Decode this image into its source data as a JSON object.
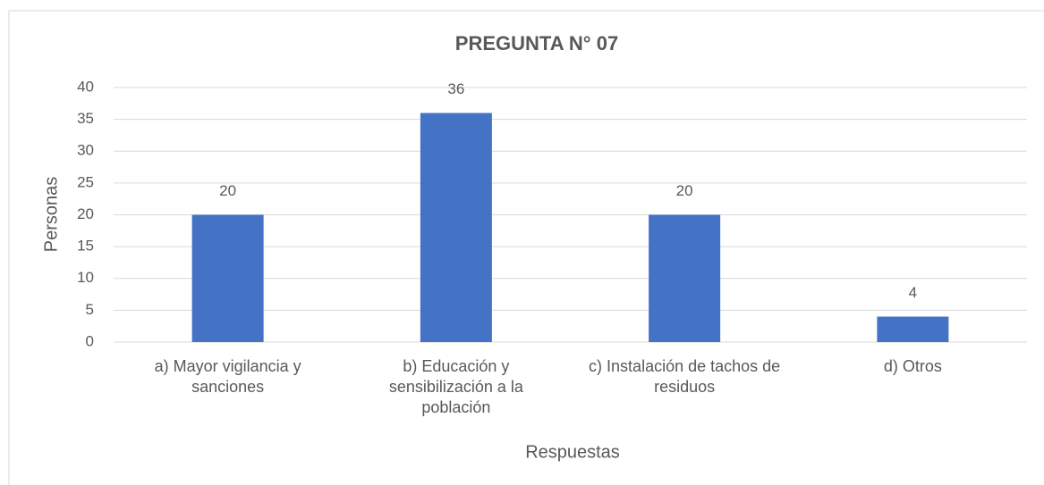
{
  "chart_data": {
    "type": "bar",
    "title": "PREGUNTA N° 07",
    "categories": [
      "a) Mayor vigilancia y sanciones",
      "b) Educación y sensibilización a la población",
      "c) Instalación de tachos de residuos",
      "d) Otros"
    ],
    "values": [
      20,
      36,
      20,
      4
    ],
    "color": "#4472c4",
    "xlabel": "Respuestas",
    "ylabel": "Personas",
    "ylim": [
      0,
      40
    ],
    "yticks": [
      0,
      5,
      10,
      15,
      20,
      25,
      30,
      35,
      40
    ],
    "grid": true
  }
}
